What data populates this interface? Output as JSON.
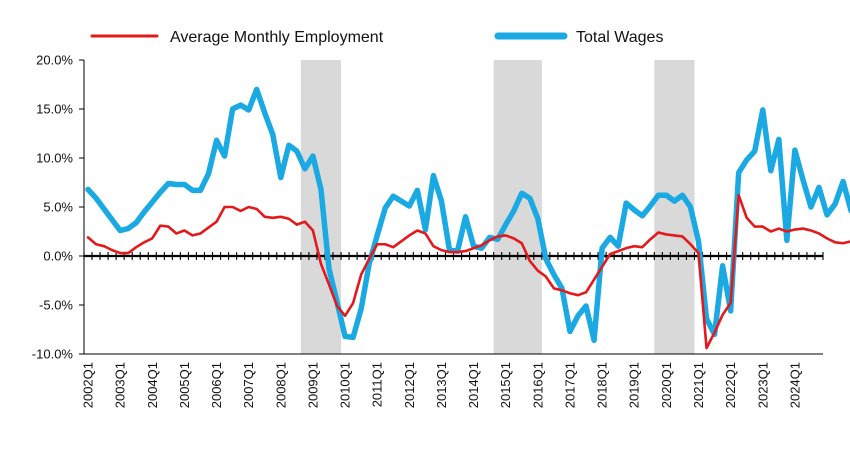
{
  "chart_data": {
    "type": "line",
    "title": "",
    "xlabel": "",
    "ylabel": "",
    "ylim": [
      -10,
      20
    ],
    "y_ticks": [
      "20.0%",
      "15.0%",
      "10.0%",
      "5.0%",
      "0.0%",
      "-5.0%",
      "-10.0%"
    ],
    "y_tick_values": [
      20,
      15,
      10,
      5,
      0,
      -5,
      -10
    ],
    "x_tick_labels": [
      "2002Q1",
      "2003Q1",
      "2004Q1",
      "2005Q1",
      "2006Q1",
      "2007Q1",
      "2008Q1",
      "2009Q1",
      "2010Q1",
      "2011Q1",
      "2012Q1",
      "2013Q1",
      "2014Q1",
      "2015Q1",
      "2016Q1",
      "2017Q1",
      "2018Q1",
      "2019Q1",
      "2020Q1",
      "2021Q1",
      "2022Q1",
      "2023Q1",
      "2024Q1"
    ],
    "x_start": "2002Q1",
    "x_end": "2024Q4",
    "recession_shading": [
      {
        "from": "2008Q4",
        "to": "2009Q4"
      },
      {
        "from": "2014Q4",
        "to": "2016Q1"
      },
      {
        "from": "2019Q4",
        "to": "2020Q4"
      }
    ],
    "legend_position": "top",
    "shading_color": "#d9d9d9",
    "series": [
      {
        "name": "Average Monthly Employment",
        "color": "#e3191b",
        "values": [
          1.9,
          1.2,
          1.0,
          0.6,
          0.3,
          0.3,
          0.9,
          1.4,
          1.8,
          3.1,
          3.0,
          2.3,
          2.6,
          2.1,
          2.3,
          2.9,
          3.5,
          5.0,
          5.0,
          4.6,
          5.0,
          4.8,
          4.0,
          3.9,
          4.0,
          3.8,
          3.2,
          3.5,
          2.6,
          -0.8,
          -2.9,
          -5.1,
          -6.1,
          -4.8,
          -1.9,
          -0.3,
          1.2,
          1.2,
          0.9,
          1.5,
          2.1,
          2.6,
          2.3,
          1.0,
          0.6,
          0.4,
          0.4,
          0.5,
          0.8,
          1.1,
          1.6,
          2.0,
          2.1,
          1.8,
          1.3,
          -0.5,
          -1.5,
          -2.1,
          -3.3,
          -3.5,
          -3.8,
          -4.0,
          -3.7,
          -2.4,
          -1.1,
          0.2,
          0.5,
          0.8,
          1.0,
          0.9,
          1.7,
          2.4,
          2.2,
          2.1,
          2.0,
          1.2,
          0.3,
          -9.4,
          -7.8,
          -6.0,
          -4.8,
          6.2,
          3.9,
          3.0,
          3.0,
          2.5,
          2.8,
          2.5,
          2.7,
          2.8,
          2.6,
          2.3,
          1.8,
          1.4,
          1.3,
          1.5,
          0.7
        ]
      },
      {
        "name": "Total Wages",
        "color": "#1aa9e3",
        "values": [
          6.8,
          5.9,
          4.8,
          3.7,
          2.6,
          2.8,
          3.4,
          4.5,
          5.5,
          6.5,
          7.4,
          7.3,
          7.3,
          6.7,
          6.7,
          8.4,
          11.8,
          10.2,
          15.0,
          15.4,
          14.9,
          17.0,
          14.6,
          12.4,
          8.0,
          11.3,
          10.7,
          8.9,
          10.2,
          6.8,
          -1.3,
          -4.7,
          -8.2,
          -8.3,
          -5.4,
          -0.8,
          2.1,
          4.9,
          6.1,
          5.6,
          5.1,
          6.7,
          2.7,
          8.2,
          5.6,
          0.6,
          0.5,
          4.0,
          1.0,
          0.8,
          1.9,
          1.7,
          3.2,
          4.6,
          6.4,
          5.9,
          3.8,
          -0.3,
          -1.9,
          -3.3,
          -7.7,
          -6.1,
          -5.1,
          -8.6,
          0.8,
          1.9,
          1.0,
          5.4,
          4.7,
          4.1,
          5.1,
          6.2,
          6.2,
          5.6,
          6.2,
          5.0,
          1.5,
          -6.4,
          -8.0,
          -1.0,
          -5.6,
          8.5,
          9.8,
          10.7,
          14.9,
          8.7,
          11.9,
          1.6,
          10.8,
          7.8,
          5.0,
          7.0,
          4.2,
          5.3,
          7.6,
          4.6
        ]
      }
    ]
  }
}
